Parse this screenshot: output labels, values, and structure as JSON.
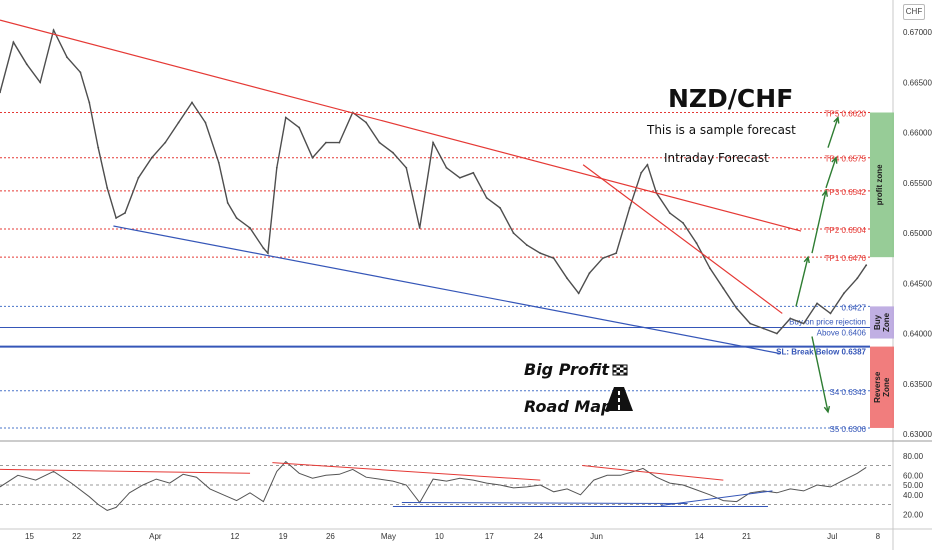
{
  "header": {
    "symbol_badge": "CHF",
    "pair": "NZD/CHF",
    "subtitle": "This is a sample forecast",
    "forecast_type": "Intraday Forecast"
  },
  "branding": {
    "line1": "Big Profit",
    "line2": "Road Map"
  },
  "colors": {
    "candle": "#4e4e4e",
    "trend_red": "#e53935",
    "trend_blue": "#3556b8",
    "level_red": "#e53935",
    "level_blue": "#4a74c9",
    "profit_zone": "#8cc78c",
    "buy_zone": "#b9a6e0",
    "reverse_zone": "#ef6f6f",
    "arrow_green": "#2e7d32"
  },
  "zones": [
    {
      "label": "profit zone",
      "from": 0.6476,
      "to": 0.662,
      "color": "#8cc78c"
    },
    {
      "label": "Buy Zone",
      "from": 0.6395,
      "to": 0.6427,
      "color": "#b9a6e0"
    },
    {
      "label": "Reverse Zone",
      "from": 0.6306,
      "to": 0.6387,
      "color": "#ef6f6f"
    }
  ],
  "levels": [
    {
      "label": "TP5 0.6620",
      "value": 0.662,
      "color": "#e53935",
      "style": "dotted"
    },
    {
      "label": "TP4 0.6575",
      "value": 0.6575,
      "color": "#e53935",
      "style": "dotted"
    },
    {
      "label": "TP3 0.6542",
      "value": 0.6542,
      "color": "#e53935",
      "style": "dotted"
    },
    {
      "label": "TP2 0.6504",
      "value": 0.6504,
      "color": "#e53935",
      "style": "dotted"
    },
    {
      "label": "TP1 0.6476",
      "value": 0.6476,
      "color": "#e53935",
      "style": "dotted"
    },
    {
      "label": "0.6427",
      "value": 0.6427,
      "color": "#4a74c9",
      "style": "dotted"
    },
    {
      "label": "Above 0.6406",
      "value": 0.6406,
      "color": "#3556b8",
      "style": "solid"
    },
    {
      "label": "SL: Break Below 0.6387",
      "value": 0.6387,
      "color": "#3556b8",
      "style": "solid-thick"
    },
    {
      "label": "S4 0.6343",
      "value": 0.6343,
      "color": "#4a74c9",
      "style": "dotted"
    },
    {
      "label": "S5 0.6306",
      "value": 0.6306,
      "color": "#4a74c9",
      "style": "dotted"
    }
  ],
  "annotations": {
    "buy_note": "Buy on price rejection"
  },
  "chart_data": [
    {
      "type": "line",
      "title": "NZD/CHF",
      "x_axis": {
        "ticks": [
          {
            "label": "15",
            "t": 0.033
          },
          {
            "label": "22",
            "t": 0.0858
          },
          {
            "label": "Apr",
            "t": 0.174
          },
          {
            "label": "12",
            "t": 0.263
          },
          {
            "label": "19",
            "t": 0.317
          },
          {
            "label": "26",
            "t": 0.37
          },
          {
            "label": "May",
            "t": 0.435
          },
          {
            "label": "10",
            "t": 0.492
          },
          {
            "label": "17",
            "t": 0.548
          },
          {
            "label": "24",
            "t": 0.603
          },
          {
            "label": "Jun",
            "t": 0.668
          },
          {
            "label": "14",
            "t": 0.783
          },
          {
            "label": "21",
            "t": 0.836
          },
          {
            "label": "Jul",
            "t": 0.932
          },
          {
            "label": "8",
            "t": 0.983
          }
        ]
      },
      "y_axis": {
        "min": 0.6297,
        "max": 0.6728,
        "ticks": [
          "0.67000",
          "0.66500",
          "0.66000",
          "0.65500",
          "0.65000",
          "0.64500",
          "0.64000",
          "0.63500",
          "0.63000"
        ],
        "tick_values": [
          0.67,
          0.665,
          0.66,
          0.655,
          0.65,
          0.645,
          0.64,
          0.635,
          0.63
        ]
      },
      "series": [
        {
          "values": [
            [
              0.0,
              0.664
            ],
            [
              0.015,
              0.669
            ],
            [
              0.03,
              0.6668
            ],
            [
              0.045,
              0.665
            ],
            [
              0.06,
              0.6702
            ],
            [
              0.075,
              0.6675
            ],
            [
              0.09,
              0.666
            ],
            [
              0.1,
              0.663
            ],
            [
              0.11,
              0.6585
            ],
            [
              0.12,
              0.6545
            ],
            [
              0.13,
              0.6515
            ],
            [
              0.14,
              0.652
            ],
            [
              0.155,
              0.6555
            ],
            [
              0.17,
              0.6575
            ],
            [
              0.185,
              0.659
            ],
            [
              0.2,
              0.661
            ],
            [
              0.215,
              0.663
            ],
            [
              0.23,
              0.661
            ],
            [
              0.245,
              0.657
            ],
            [
              0.255,
              0.653
            ],
            [
              0.265,
              0.6515
            ],
            [
              0.28,
              0.6505
            ],
            [
              0.295,
              0.6485
            ],
            [
              0.3,
              0.648
            ],
            [
              0.31,
              0.6565
            ],
            [
              0.32,
              0.6615
            ],
            [
              0.335,
              0.6605
            ],
            [
              0.35,
              0.6575
            ],
            [
              0.365,
              0.659
            ],
            [
              0.38,
              0.659
            ],
            [
              0.395,
              0.662
            ],
            [
              0.41,
              0.661
            ],
            [
              0.425,
              0.659
            ],
            [
              0.44,
              0.658
            ],
            [
              0.455,
              0.6565
            ],
            [
              0.47,
              0.6505
            ],
            [
              0.485,
              0.659
            ],
            [
              0.5,
              0.6565
            ],
            [
              0.515,
              0.6555
            ],
            [
              0.53,
              0.656
            ],
            [
              0.545,
              0.6535
            ],
            [
              0.56,
              0.6525
            ],
            [
              0.575,
              0.65
            ],
            [
              0.59,
              0.6488
            ],
            [
              0.605,
              0.648
            ],
            [
              0.62,
              0.6475
            ],
            [
              0.635,
              0.6455
            ],
            [
              0.648,
              0.644
            ],
            [
              0.66,
              0.646
            ],
            [
              0.675,
              0.6475
            ],
            [
              0.69,
              0.648
            ],
            [
              0.705,
              0.6525
            ],
            [
              0.718,
              0.656
            ],
            [
              0.725,
              0.6568
            ],
            [
              0.735,
              0.654
            ],
            [
              0.75,
              0.652
            ],
            [
              0.765,
              0.651
            ],
            [
              0.78,
              0.649
            ],
            [
              0.795,
              0.6465
            ],
            [
              0.81,
              0.6445
            ],
            [
              0.825,
              0.6425
            ],
            [
              0.84,
              0.641
            ],
            [
              0.855,
              0.6405
            ],
            [
              0.87,
              0.64
            ],
            [
              0.885,
              0.6415
            ],
            [
              0.9,
              0.641
            ],
            [
              0.915,
              0.643
            ],
            [
              0.93,
              0.642
            ],
            [
              0.945,
              0.644
            ],
            [
              0.96,
              0.6455
            ],
            [
              0.97,
              0.6468
            ]
          ]
        }
      ]
    },
    {
      "type": "line",
      "y_axis": {
        "min": 10,
        "max": 90,
        "ticks": [
          "80.00",
          "60.00",
          "50.00",
          "40.00",
          "20.00"
        ],
        "tick_values": [
          80,
          60,
          50,
          40,
          20
        ]
      },
      "reference_lines": [
        70,
        50,
        30
      ],
      "series": [
        {
          "values": [
            [
              0.0,
              48
            ],
            [
              0.02,
              60
            ],
            [
              0.04,
              55
            ],
            [
              0.06,
              64
            ],
            [
              0.08,
              52
            ],
            [
              0.1,
              38
            ],
            [
              0.11,
              30
            ],
            [
              0.12,
              24
            ],
            [
              0.13,
              27
            ],
            [
              0.145,
              42
            ],
            [
              0.16,
              50
            ],
            [
              0.175,
              56
            ],
            [
              0.19,
              52
            ],
            [
              0.205,
              61
            ],
            [
              0.22,
              58
            ],
            [
              0.235,
              46
            ],
            [
              0.25,
              40
            ],
            [
              0.265,
              34
            ],
            [
              0.28,
              42
            ],
            [
              0.295,
              33
            ],
            [
              0.31,
              64
            ],
            [
              0.32,
              74
            ],
            [
              0.335,
              62
            ],
            [
              0.35,
              57
            ],
            [
              0.365,
              60
            ],
            [
              0.38,
              61
            ],
            [
              0.395,
              66
            ],
            [
              0.41,
              58
            ],
            [
              0.425,
              56
            ],
            [
              0.44,
              54
            ],
            [
              0.455,
              50
            ],
            [
              0.47,
              32
            ],
            [
              0.485,
              56
            ],
            [
              0.5,
              54
            ],
            [
              0.515,
              57
            ],
            [
              0.53,
              55
            ],
            [
              0.545,
              52
            ],
            [
              0.56,
              50
            ],
            [
              0.575,
              47
            ],
            [
              0.59,
              48
            ],
            [
              0.605,
              50
            ],
            [
              0.62,
              43
            ],
            [
              0.635,
              46
            ],
            [
              0.65,
              40
            ],
            [
              0.665,
              55
            ],
            [
              0.68,
              60
            ],
            [
              0.695,
              60
            ],
            [
              0.71,
              64
            ],
            [
              0.72,
              67
            ],
            [
              0.735,
              58
            ],
            [
              0.75,
              52
            ],
            [
              0.765,
              50
            ],
            [
              0.78,
              45
            ],
            [
              0.795,
              40
            ],
            [
              0.81,
              34
            ],
            [
              0.825,
              33
            ],
            [
              0.84,
              42
            ],
            [
              0.855,
              44
            ],
            [
              0.87,
              42
            ],
            [
              0.885,
              46
            ],
            [
              0.9,
              44
            ],
            [
              0.915,
              50
            ],
            [
              0.93,
              48
            ],
            [
              0.945,
              55
            ],
            [
              0.96,
              62
            ],
            [
              0.97,
              68
            ]
          ]
        }
      ]
    }
  ]
}
